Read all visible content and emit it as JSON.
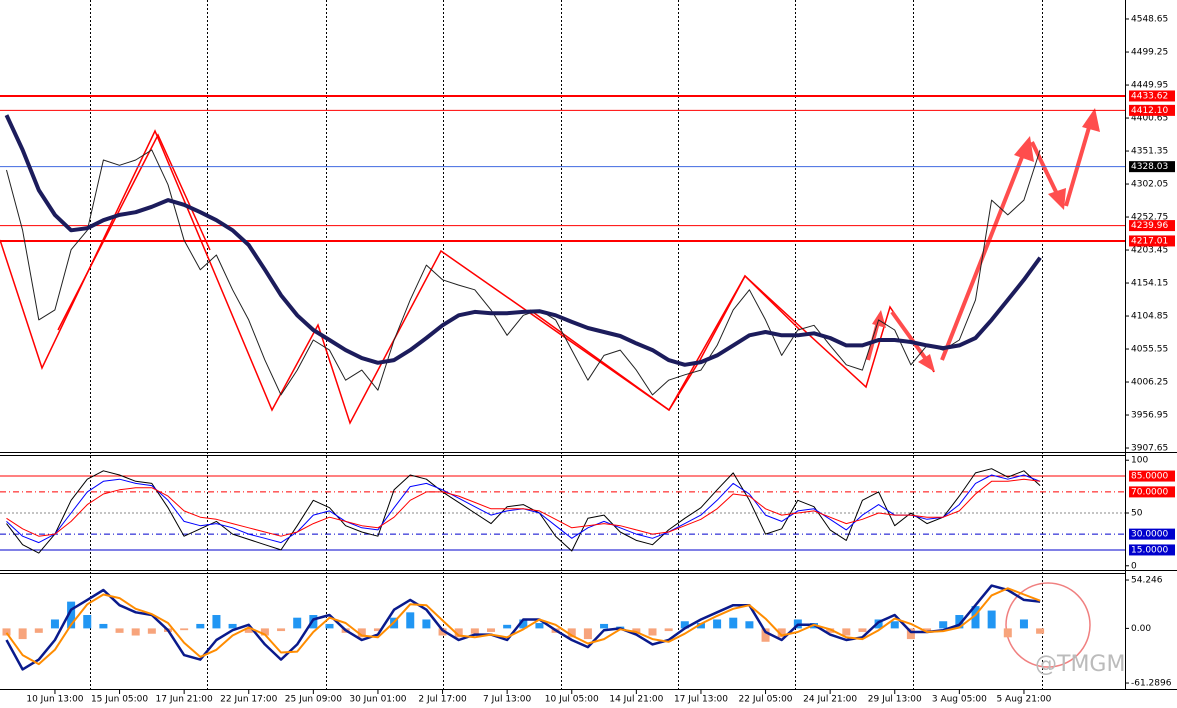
{
  "chart_data": [
    {
      "type": "line",
      "categories": [
        null,
        null,
        null,
        "10 Jun 13:00",
        null,
        null,
        null,
        "15 Jun 05:00",
        null,
        null,
        null,
        "17 Jun 21:00",
        null,
        null,
        null,
        "22 Jun 17:00",
        null,
        null,
        null,
        "25 Jun 09:00",
        null,
        null,
        null,
        "30 Jun 01:00",
        null,
        null,
        null,
        "2 Jul 17:00",
        null,
        null,
        null,
        "7 Jul 13:00",
        null,
        null,
        null,
        "10 Jul 05:00",
        null,
        null,
        null,
        "14 Jul 21:00",
        null,
        null,
        null,
        "17 Jul 13:00",
        null,
        null,
        null,
        "22 Jul 05:00",
        null,
        null,
        null,
        "24 Jul 21:00",
        null,
        null,
        null,
        "29 Jul 13:00",
        null,
        null,
        null,
        "3 Aug 05:00",
        null,
        null,
        null,
        "5 Aug 21:00",
        null
      ],
      "series": [
        {
          "color": "#222222",
          "values": [
            4323,
            4233,
            4099,
            4114,
            4204,
            4233,
            4338,
            4330,
            4338,
            4353,
            4301,
            4218,
            4174,
            4196,
            4144,
            4099,
            4039,
            3987,
            4024,
            4069,
            4054,
            4009,
            4024,
            3994,
            4069,
            4129,
            4181,
            4159,
            4151,
            4144,
            4114,
            4076,
            4106,
            4114,
            4099,
            4054,
            4009,
            4046,
            4054,
            4024,
            3987,
            4009,
            4017,
            4024,
            4061,
            4114,
            4144,
            4099,
            4046,
            4084,
            4091,
            4061,
            4032,
            4024,
            4099,
            4084,
            4032,
            4061,
            4054,
            4069,
            4129,
            4278,
            4256,
            4278,
            4353
          ]
        },
        {
          "color": "#1c1c5c",
          "values": [
            4405,
            4353,
            4293,
            4256,
            4233,
            4236,
            4248,
            4256,
            4260,
            4268,
            4278,
            4271,
            4260,
            4248,
            4233,
            4211,
            4174,
            4136,
            4106,
            4084,
            4069,
            4054,
            4042,
            4035,
            4039,
            4054,
            4072,
            4091,
            4106,
            4111,
            4109,
            4109,
            4111,
            4112,
            4106,
            4096,
            4087,
            4081,
            4075,
            4064,
            4054,
            4039,
            4032,
            4036,
            4046,
            4061,
            4076,
            4081,
            4076,
            4076,
            4079,
            4072,
            4061,
            4061,
            4069,
            4069,
            4066,
            4061,
            4057,
            4061,
            4072,
            4099,
            4129,
            4159,
            4192
          ]
        }
      ],
      "ylim": [
        3901.7,
        4577.0
      ],
      "yticks": [
        4548.65,
        4499.25,
        4449.95,
        4400.65,
        4351.35,
        4302.05,
        4252.75,
        4203.45,
        4154.15,
        4104.85,
        4055.55,
        4006.25,
        3956.95,
        3907.65
      ],
      "levels": [
        {
          "value": 4433.62,
          "label": "4433.62",
          "color": "#ff0000",
          "label_bg": "#ff0000",
          "dash": "solid",
          "width": 2
        },
        {
          "value": 4412.1,
          "label": "4412.10",
          "color": "#ff0000",
          "label_bg": "#ff0000",
          "dash": "solid",
          "width": 1
        },
        {
          "value": 4328.03,
          "label": "4328.03",
          "color": "#4169e1",
          "label_bg": "#000000",
          "dash": "solid",
          "width": 1
        },
        {
          "value": 4239.96,
          "label": "4239.96",
          "color": "#ff0000",
          "label_bg": "#ff0000",
          "dash": "solid",
          "width": 1
        },
        {
          "value": 4217.01,
          "label": "4217.01",
          "color": "#ff0000",
          "label_bg": "#ff0000",
          "dash": "solid",
          "width": 2
        }
      ]
    },
    {
      "type": "line",
      "series": [
        {
          "color": "#000000",
          "values": [
            40,
            20,
            12,
            30,
            62,
            82,
            90,
            86,
            80,
            78,
            55,
            28,
            35,
            42,
            30,
            25,
            20,
            15,
            38,
            62,
            55,
            38,
            32,
            28,
            72,
            86,
            82,
            70,
            60,
            50,
            40,
            56,
            58,
            50,
            28,
            14,
            45,
            48,
            32,
            24,
            20,
            34,
            45,
            55,
            72,
            88,
            62,
            30,
            35,
            62,
            56,
            34,
            24,
            62,
            70,
            38,
            50,
            40,
            46,
            66,
            88,
            92,
            84,
            90,
            76
          ]
        },
        {
          "color": "#0000ff",
          "values": [
            42,
            28,
            22,
            30,
            50,
            70,
            80,
            82,
            78,
            76,
            62,
            42,
            38,
            40,
            36,
            30,
            26,
            22,
            32,
            48,
            52,
            42,
            36,
            34,
            55,
            75,
            78,
            72,
            64,
            56,
            48,
            52,
            54,
            50,
            38,
            26,
            36,
            42,
            36,
            30,
            26,
            32,
            40,
            48,
            62,
            78,
            68,
            48,
            42,
            52,
            54,
            44,
            34,
            48,
            58,
            48,
            48,
            44,
            46,
            58,
            78,
            86,
            82,
            86,
            80
          ]
        },
        {
          "color": "#ff0000",
          "values": [
            45,
            35,
            28,
            30,
            42,
            58,
            68,
            72,
            74,
            74,
            66,
            52,
            46,
            44,
            40,
            36,
            32,
            28,
            32,
            40,
            46,
            42,
            38,
            36,
            46,
            62,
            70,
            70,
            66,
            60,
            54,
            54,
            54,
            52,
            44,
            36,
            38,
            40,
            38,
            34,
            30,
            32,
            38,
            44,
            54,
            68,
            66,
            54,
            48,
            50,
            52,
            46,
            40,
            44,
            50,
            48,
            48,
            46,
            46,
            52,
            68,
            80,
            80,
            82,
            80
          ]
        }
      ],
      "ylim": [
        -4,
        104
      ],
      "yticks": [
        100,
        50,
        0
      ],
      "levels": [
        {
          "value": 85,
          "label": "85.0000",
          "color": "#ff0000",
          "label_bg": "#ff0000",
          "dash": "solid",
          "width": 1
        },
        {
          "value": 70,
          "label": "70.0000",
          "color": "#ff0000",
          "label_bg": "#ff0000",
          "dash": "dashdot",
          "width": 1
        },
        {
          "value": 30,
          "label": "30.0000",
          "color": "#0000cd",
          "label_bg": "#0000cd",
          "dash": "dashdot",
          "width": 1
        },
        {
          "value": 15,
          "label": "15.0000",
          "color": "#0000cd",
          "label_bg": "#0000cd",
          "dash": "solid",
          "width": 1
        }
      ]
    },
    {
      "type": "macd",
      "histogram": [
        -8,
        -12,
        -5,
        10,
        30,
        15,
        5,
        -5,
        -8,
        -6,
        -4,
        -2,
        5,
        15,
        5,
        -5,
        -8,
        -3,
        12,
        15,
        5,
        -5,
        -10,
        -3,
        12,
        18,
        10,
        -8,
        -10,
        -6,
        -4,
        4,
        10,
        6,
        -5,
        -10,
        -12,
        5,
        2,
        -6,
        -8,
        -3,
        8,
        6,
        10,
        12,
        8,
        -15,
        -10,
        10,
        6,
        -5,
        -8,
        -4,
        10,
        8,
        -12,
        -4,
        8,
        15,
        25,
        20,
        -10,
        10,
        -6
      ],
      "up_color": "#2196f3",
      "down_color": "#f7a47c",
      "series": [
        {
          "color": "#0a1a8c",
          "values": [
            -13,
            -46,
            -35,
            -13,
            21,
            32,
            43,
            26,
            18,
            15,
            -2,
            -30,
            -35,
            -13,
            -2,
            4,
            -18,
            -35,
            -18,
            10,
            15,
            -2,
            -13,
            -7,
            21,
            32,
            21,
            -2,
            -13,
            -7,
            -7,
            -13,
            10,
            10,
            -2,
            -13,
            -21,
            -2,
            0,
            -7,
            -18,
            -13,
            0,
            10,
            18,
            26,
            26,
            -4,
            -13,
            4,
            4,
            -7,
            -13,
            -10,
            7,
            15,
            -4,
            -4,
            -2,
            4,
            26,
            48,
            43,
            32,
            30
          ]
        },
        {
          "color": "#ff8c00",
          "values": [
            -5,
            -30,
            -40,
            -24,
            4,
            27,
            38,
            34,
            22,
            16,
            6,
            -16,
            -32,
            -24,
            -8,
            1,
            -7,
            -27,
            -26,
            -4,
            12,
            6,
            -8,
            -10,
            7,
            27,
            26,
            9,
            -8,
            -10,
            -7,
            -10,
            -1,
            10,
            4,
            -8,
            -17,
            -12,
            -1,
            -4,
            -12,
            -15,
            -6,
            5,
            14,
            22,
            26,
            11,
            -8,
            -4,
            4,
            -1,
            -10,
            -12,
            -2,
            11,
            5,
            -4,
            -3,
            1,
            15,
            37,
            45,
            38,
            31
          ]
        }
      ],
      "ylim": [
        -69.1,
        61.0
      ],
      "yticks": [
        54.246,
        {
          "value": 0,
          "label": "0.00"
        },
        -61.2896
      ]
    }
  ],
  "watermark": "@TMGM"
}
